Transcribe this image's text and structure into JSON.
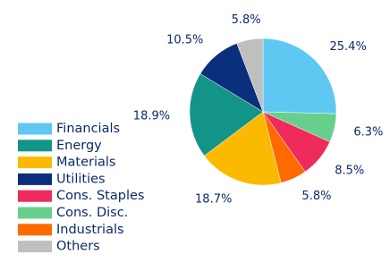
{
  "chart_data": {
    "type": "pie",
    "categories": [
      "Financials",
      "Cons. Disc.",
      "Cons. Staples",
      "Industrials",
      "Materials",
      "Energy",
      "Utilities",
      "Others"
    ],
    "values": [
      25.4,
      6.3,
      8.5,
      5.8,
      18.7,
      18.9,
      10.5,
      5.8
    ],
    "value_labels": [
      "25.4%",
      "6.3%",
      "8.5%",
      "5.8%",
      "18.7%",
      "18.9%",
      "10.5%",
      "5.8%"
    ],
    "colors": [
      "#5ec8f2",
      "#66cf8c",
      "#ef2b5e",
      "#ff6a00",
      "#fbb900",
      "#139488",
      "#0a2f7c",
      "#bfbfbf"
    ],
    "legend_order": [
      0,
      5,
      4,
      6,
      2,
      1,
      3,
      7
    ],
    "legend": "left"
  }
}
